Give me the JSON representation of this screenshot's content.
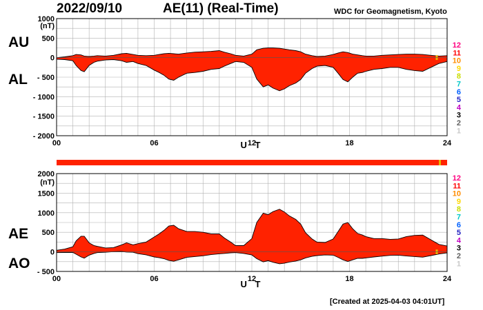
{
  "header": {
    "date": "2022/09/10",
    "title": "AE(11) (Real-Time)",
    "organization": "WDC for Geomagnetism, Kyoto"
  },
  "footer": {
    "created": "[Created at 2025-04-03 04:01UT]"
  },
  "colors": {
    "fill": "#ff2200",
    "outline": "#000000",
    "grid": "#b0b0b0",
    "status_bar": "#ff2200",
    "status_marker": "#e6b400"
  },
  "chart_data": [
    {
      "type": "area",
      "name": "AU/AL panel",
      "labels_left": [
        "AU",
        "AL"
      ],
      "ylabel": "(nT)",
      "xlabel": "U T",
      "x_ticks": [
        "00",
        "06",
        "12",
        "18",
        "24"
      ],
      "y_ticks": [
        1000,
        500,
        0,
        -500,
        -1000,
        -1500,
        -2000
      ],
      "y_tick_labels": [
        "1000",
        "500",
        "0",
        "- 500",
        "- 1000",
        "- 1500",
        "- 2000"
      ],
      "xlim": [
        0,
        24
      ],
      "ylim": [
        -2000,
        1000
      ],
      "grid": true,
      "x": [
        0,
        0.5,
        1,
        1.2,
        1.5,
        1.7,
        2,
        2.3,
        2.5,
        3,
        3.5,
        4,
        4.3,
        4.7,
        5,
        5.5,
        6,
        6.3,
        6.6,
        6.9,
        7.2,
        7.5,
        8,
        8.5,
        9,
        9.5,
        10,
        10.3,
        10.7,
        11,
        11.5,
        12,
        12.3,
        12.7,
        13,
        13.3,
        13.7,
        14,
        14.3,
        14.7,
        15,
        15.3,
        15.7,
        16,
        16.5,
        17,
        17.3,
        17.6,
        17.9,
        18.2,
        18.5,
        18.8,
        19,
        19.5,
        20,
        20.5,
        21,
        21.5,
        22,
        22.5,
        23,
        23.5,
        24
      ],
      "series": [
        {
          "name": "AU",
          "values": [
            0,
            20,
            50,
            80,
            70,
            40,
            30,
            40,
            50,
            40,
            60,
            100,
            110,
            80,
            60,
            50,
            60,
            80,
            100,
            110,
            100,
            90,
            120,
            140,
            150,
            160,
            180,
            140,
            100,
            60,
            40,
            90,
            200,
            240,
            250,
            250,
            240,
            220,
            200,
            180,
            150,
            90,
            50,
            30,
            40,
            80,
            120,
            150,
            130,
            90,
            70,
            50,
            40,
            40,
            60,
            70,
            80,
            90,
            90,
            80,
            60,
            40,
            50
          ]
        },
        {
          "name": "AL",
          "values": [
            -40,
            -50,
            -80,
            -200,
            -330,
            -360,
            -200,
            -120,
            -90,
            -60,
            -50,
            -80,
            -120,
            -100,
            -150,
            -200,
            -320,
            -380,
            -450,
            -550,
            -580,
            -500,
            -400,
            -380,
            -350,
            -300,
            -280,
            -220,
            -150,
            -100,
            -120,
            -250,
            -550,
            -750,
            -700,
            -780,
            -850,
            -800,
            -720,
            -650,
            -560,
            -400,
            -280,
            -220,
            -200,
            -250,
            -400,
            -560,
            -620,
            -500,
            -400,
            -380,
            -350,
            -300,
            -280,
            -250,
            -250,
            -300,
            -330,
            -350,
            -250,
            -150,
            -100
          ]
        }
      ]
    },
    {
      "type": "area",
      "name": "AE/AO panel",
      "labels_left": [
        "AE",
        "AO"
      ],
      "ylabel": "(nT)",
      "xlabel": "U T",
      "x_ticks": [
        "00",
        "06",
        "12",
        "18",
        "24"
      ],
      "y_ticks": [
        2000,
        1500,
        1000,
        500,
        0,
        -500
      ],
      "y_tick_labels": [
        "2000",
        "1500",
        "1000",
        "500",
        "0",
        "- 500"
      ],
      "xlim": [
        0,
        24
      ],
      "ylim": [
        -500,
        2000
      ],
      "grid": true,
      "x": [
        0,
        0.5,
        1,
        1.2,
        1.5,
        1.7,
        2,
        2.3,
        2.5,
        3,
        3.5,
        4,
        4.3,
        4.7,
        5,
        5.5,
        6,
        6.3,
        6.6,
        6.9,
        7.2,
        7.5,
        8,
        8.5,
        9,
        9.5,
        10,
        10.3,
        10.7,
        11,
        11.5,
        12,
        12.3,
        12.7,
        13,
        13.3,
        13.7,
        14,
        14.3,
        14.7,
        15,
        15.3,
        15.7,
        16,
        16.5,
        17,
        17.3,
        17.6,
        17.9,
        18.2,
        18.5,
        18.8,
        19,
        19.5,
        20,
        20.5,
        21,
        21.5,
        22,
        22.5,
        23,
        23.5,
        24
      ],
      "series": [
        {
          "name": "AE",
          "values": [
            40,
            70,
            130,
            280,
            400,
            400,
            230,
            160,
            140,
            100,
            110,
            180,
            230,
            180,
            210,
            250,
            380,
            460,
            550,
            660,
            680,
            590,
            520,
            520,
            500,
            460,
            460,
            360,
            250,
            160,
            160,
            340,
            750,
            990,
            950,
            1030,
            1090,
            1020,
            920,
            830,
            710,
            490,
            330,
            250,
            240,
            330,
            520,
            710,
            750,
            590,
            470,
            430,
            390,
            340,
            340,
            320,
            330,
            390,
            420,
            430,
            310,
            190,
            150
          ]
        },
        {
          "name": "AO",
          "values": [
            -20,
            -15,
            -15,
            -60,
            -130,
            -160,
            -85,
            -40,
            -20,
            -10,
            5,
            10,
            -5,
            -10,
            -45,
            -75,
            -130,
            -150,
            -175,
            -220,
            -240,
            -205,
            -140,
            -120,
            -100,
            -70,
            -50,
            -40,
            -25,
            -20,
            -40,
            -80,
            -175,
            -255,
            -225,
            -265,
            -305,
            -290,
            -260,
            -235,
            -205,
            -155,
            -115,
            -95,
            -80,
            -85,
            -140,
            -205,
            -245,
            -205,
            -165,
            -165,
            -155,
            -130,
            -110,
            -90,
            -85,
            -105,
            -120,
            -135,
            -95,
            -55,
            -25
          ]
        }
      ]
    }
  ],
  "activity_levels": [
    "12",
    "11",
    "10",
    "9",
    "8",
    "7",
    "6",
    "5",
    "4",
    "3",
    "2",
    "1"
  ],
  "level_colors": [
    "#ff0080",
    "#ff0000",
    "#ff8c00",
    "#ffd700",
    "#c8dc00",
    "#00c8c8",
    "#0060ff",
    "#2020c0",
    "#c000c0",
    "#000000",
    "#606060",
    "#c8c8c8"
  ]
}
